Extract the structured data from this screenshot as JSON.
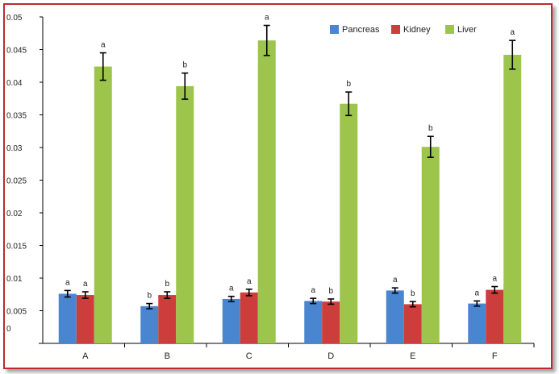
{
  "chart_data": {
    "type": "bar",
    "title": "",
    "xlabel": "",
    "ylabel": "",
    "categories": [
      "A",
      "B",
      "C",
      "D",
      "E",
      "F"
    ],
    "ylim": [
      0,
      0.05
    ],
    "yticks": [
      "0",
      "0.005",
      "0.01",
      "0.015",
      "0.02",
      "0.025",
      "0.03",
      "0.035",
      "0.04",
      "0.045",
      "0.05"
    ],
    "grid": false,
    "legend_position": "top-right",
    "series": [
      {
        "name": "Pancreas",
        "color": "#4a86d0",
        "values": [
          0.0076,
          0.0057,
          0.0068,
          0.0065,
          0.0081,
          0.0061
        ],
        "errors": [
          0.0005,
          0.0004,
          0.0004,
          0.0004,
          0.0004,
          0.0004
        ],
        "labels": [
          "a",
          "b",
          "a",
          "a",
          "a",
          "a"
        ]
      },
      {
        "name": "Kidney",
        "color": "#cd3d3c",
        "values": [
          0.0074,
          0.0074,
          0.0078,
          0.0064,
          0.006,
          0.0082
        ],
        "errors": [
          0.0005,
          0.0005,
          0.0005,
          0.0004,
          0.0004,
          0.0005
        ],
        "labels": [
          "a",
          "b",
          "a",
          "b",
          "b",
          "a"
        ]
      },
      {
        "name": "Liver",
        "color": "#9dc54b",
        "values": [
          0.0424,
          0.0394,
          0.0464,
          0.0367,
          0.0301,
          0.0442
        ],
        "errors": [
          0.0021,
          0.002,
          0.0023,
          0.0018,
          0.0016,
          0.0022
        ],
        "labels": [
          "a",
          "b",
          "a",
          "b",
          "b",
          "a"
        ]
      }
    ]
  }
}
